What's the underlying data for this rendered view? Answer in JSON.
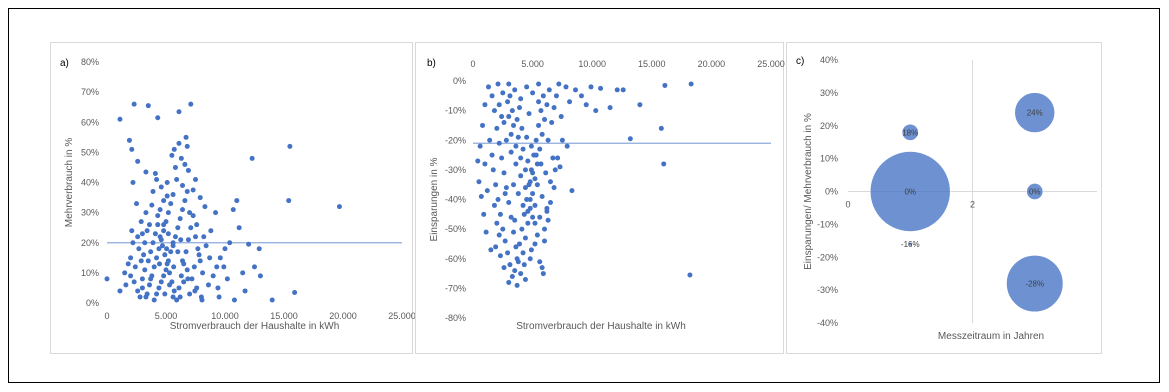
{
  "chart_data": [
    {
      "id": "a",
      "type": "scatter",
      "panel_label": "a)",
      "xlabel": "Stromverbrauch der Haushalte in kWh",
      "ylabel": "Mehrverbrauch in %",
      "xlim": [
        0,
        25000
      ],
      "ylim": [
        0,
        80
      ],
      "x_ticks": [
        "0",
        "5.000",
        "10.000",
        "15.000",
        "20.000",
        "25.000"
      ],
      "y_ticks": [
        "0%",
        "10%",
        "20%",
        "30%",
        "40%",
        "50%",
        "60%",
        "70%",
        "80%"
      ],
      "reference_line_y": 20,
      "marker_color": "#4472c4",
      "line_color": "#8eaadb",
      "points": [
        [
          1100,
          61
        ],
        [
          2300,
          66
        ],
        [
          3500,
          65.5
        ],
        [
          4300,
          61.5
        ],
        [
          6100,
          63.5
        ],
        [
          7100,
          66
        ],
        [
          1900,
          54
        ],
        [
          2100,
          51
        ],
        [
          2600,
          47
        ],
        [
          2200,
          40
        ],
        [
          3300,
          43.5
        ],
        [
          4200,
          41
        ],
        [
          4600,
          38.5
        ],
        [
          5100,
          35.5
        ],
        [
          5500,
          49
        ],
        [
          5700,
          51
        ],
        [
          6100,
          53
        ],
        [
          6700,
          55
        ],
        [
          6800,
          52
        ],
        [
          6600,
          46
        ],
        [
          5900,
          41
        ],
        [
          7300,
          37.5
        ],
        [
          7900,
          35
        ],
        [
          8300,
          32
        ],
        [
          11000,
          34
        ],
        [
          12300,
          48
        ],
        [
          15500,
          52
        ],
        [
          15400,
          34
        ],
        [
          19700,
          32
        ],
        [
          10700,
          31
        ],
        [
          11200,
          25
        ],
        [
          12000,
          19.5
        ],
        [
          12900,
          18
        ],
        [
          11500,
          10
        ],
        [
          12500,
          12
        ],
        [
          13000,
          9
        ],
        [
          14000,
          1
        ],
        [
          15900,
          3.5
        ],
        [
          0,
          8
        ],
        [
          1100,
          4
        ],
        [
          1600,
          6
        ],
        [
          2000,
          9
        ],
        [
          2400,
          12
        ],
        [
          2000,
          15
        ],
        [
          2700,
          18
        ],
        [
          2100,
          24
        ],
        [
          2900,
          27
        ],
        [
          3300,
          30
        ],
        [
          2500,
          33
        ],
        [
          3800,
          32.5
        ],
        [
          4300,
          29
        ],
        [
          4800,
          26
        ],
        [
          5200,
          23
        ],
        [
          5600,
          20
        ],
        [
          6000,
          17
        ],
        [
          6400,
          14
        ],
        [
          6800,
          11
        ],
        [
          7200,
          8
        ],
        [
          7600,
          5
        ],
        [
          8000,
          2
        ],
        [
          8600,
          6
        ],
        [
          9000,
          9
        ],
        [
          9300,
          12
        ],
        [
          9600,
          15
        ],
        [
          10000,
          18
        ],
        [
          10400,
          20
        ],
        [
          9900,
          12
        ],
        [
          10200,
          8
        ],
        [
          9500,
          2
        ],
        [
          3000,
          8
        ],
        [
          3200,
          11
        ],
        [
          3500,
          14
        ],
        [
          3700,
          17
        ],
        [
          3900,
          20
        ],
        [
          4100,
          23
        ],
        [
          4300,
          26
        ],
        [
          4500,
          22
        ],
        [
          4700,
          19
        ],
        [
          4900,
          16
        ],
        [
          5100,
          13
        ],
        [
          5300,
          10
        ],
        [
          5500,
          7
        ],
        [
          5700,
          4
        ],
        [
          5900,
          1
        ],
        [
          6100,
          5
        ],
        [
          6300,
          9
        ],
        [
          6500,
          13
        ],
        [
          6700,
          17
        ],
        [
          6900,
          21
        ],
        [
          7100,
          25
        ],
        [
          7300,
          29
        ],
        [
          7500,
          22
        ],
        [
          7700,
          18
        ],
        [
          7900,
          14
        ],
        [
          8100,
          10
        ],
        [
          3400,
          3
        ],
        [
          3600,
          6
        ],
        [
          3800,
          9
        ],
        [
          4000,
          12
        ],
        [
          4200,
          15
        ],
        [
          4400,
          18
        ],
        [
          4600,
          21
        ],
        [
          4800,
          24
        ],
        [
          5000,
          27
        ],
        [
          5200,
          30
        ],
        [
          5400,
          33
        ],
        [
          4000,
          1
        ],
        [
          4200,
          3
        ],
        [
          4400,
          5
        ],
        [
          4600,
          7
        ],
        [
          4800,
          9
        ],
        [
          5000,
          11
        ],
        [
          5200,
          14
        ],
        [
          5400,
          17
        ],
        [
          5600,
          19
        ],
        [
          5800,
          22
        ],
        [
          6000,
          25
        ],
        [
          6200,
          28
        ],
        [
          6400,
          31
        ],
        [
          6600,
          34
        ],
        [
          6800,
          37
        ],
        [
          2800,
          2
        ],
        [
          3000,
          5
        ],
        [
          3200,
          20
        ],
        [
          3400,
          24
        ],
        [
          2600,
          22
        ],
        [
          2900,
          14
        ],
        [
          3100,
          16
        ],
        [
          3300,
          2
        ],
        [
          4900,
          3
        ],
        [
          5300,
          6
        ],
        [
          5600,
          2
        ],
        [
          6200,
          2
        ],
        [
          6500,
          7
        ],
        [
          7000,
          3
        ],
        [
          7400,
          12
        ],
        [
          7800,
          16
        ],
        [
          8400,
          19
        ],
        [
          8800,
          24
        ],
        [
          9200,
          30
        ],
        [
          6900,
          44
        ],
        [
          7500,
          41
        ],
        [
          6300,
          48
        ],
        [
          5600,
          36
        ],
        [
          4800,
          34
        ],
        [
          4500,
          31
        ],
        [
          3600,
          26
        ],
        [
          3000,
          23
        ],
        [
          2200,
          20
        ],
        [
          1800,
          13
        ],
        [
          1500,
          10
        ],
        [
          2300,
          7
        ],
        [
          2600,
          4
        ],
        [
          3900,
          37
        ],
        [
          5100,
          40
        ],
        [
          5800,
          45
        ],
        [
          6400,
          39
        ],
        [
          7000,
          30
        ],
        [
          7600,
          26
        ],
        [
          8200,
          22
        ],
        [
          8700,
          15
        ],
        [
          9400,
          5
        ],
        [
          10800,
          1
        ],
        [
          11700,
          4
        ],
        [
          4100,
          43
        ],
        [
          3700,
          8
        ],
        [
          4450,
          13
        ],
        [
          5050,
          18
        ],
        [
          5650,
          12
        ],
        [
          6250,
          21
        ],
        [
          6850,
          8
        ],
        [
          7450,
          4
        ],
        [
          8050,
          1
        ]
      ]
    },
    {
      "id": "b",
      "type": "scatter",
      "panel_label": "b)",
      "xlabel": "Stromverbrauch der Haushalte in kWh",
      "ylabel": "Einsparungen in %",
      "xlim": [
        0,
        25000
      ],
      "ylim": [
        -80,
        0
      ],
      "x_ticks": [
        "0",
        "5.000",
        "10.000",
        "15.000",
        "20.000",
        "25.000"
      ],
      "y_ticks": [
        "0%",
        "-10%",
        "-20%",
        "-30%",
        "-40%",
        "-50%",
        "-60%",
        "-70%",
        "-80%"
      ],
      "reference_line_y": -21,
      "marker_color": "#4472c4",
      "line_color": "#8eaadb",
      "points": [
        [
          18300,
          -1
        ],
        [
          16100,
          -1.5
        ],
        [
          15800,
          -16
        ],
        [
          16000,
          -28
        ],
        [
          18200,
          -65.5
        ],
        [
          14000,
          -8
        ],
        [
          13200,
          -19.5
        ],
        [
          12600,
          -3
        ],
        [
          12100,
          -3
        ],
        [
          11500,
          -9
        ],
        [
          10700,
          -2.5
        ],
        [
          10300,
          -10
        ],
        [
          9900,
          -2
        ],
        [
          9500,
          -8
        ],
        [
          9100,
          -5
        ],
        [
          8600,
          -3
        ],
        [
          8100,
          -7
        ],
        [
          7800,
          -2
        ],
        [
          7400,
          -12
        ],
        [
          7200,
          -1
        ],
        [
          7000,
          -5
        ],
        [
          6800,
          -9
        ],
        [
          6600,
          -14
        ],
        [
          7500,
          -20
        ],
        [
          7900,
          -22
        ],
        [
          8300,
          -37
        ],
        [
          7100,
          -26
        ],
        [
          6900,
          -30
        ],
        [
          6800,
          -36
        ],
        [
          6500,
          -41
        ],
        [
          6200,
          -44
        ],
        [
          6300,
          -47
        ],
        [
          6000,
          -54
        ],
        [
          5600,
          -61
        ],
        [
          5800,
          -63
        ],
        [
          5900,
          -65
        ],
        [
          5200,
          -55
        ],
        [
          4800,
          -60
        ],
        [
          4400,
          -67
        ],
        [
          3700,
          -69
        ],
        [
          3000,
          -68
        ],
        [
          2600,
          -63
        ],
        [
          2300,
          -59
        ],
        [
          1900,
          -56
        ],
        [
          1500,
          -57
        ],
        [
          1100,
          -51
        ],
        [
          900,
          -45
        ],
        [
          700,
          -39
        ],
        [
          500,
          -34
        ],
        [
          400,
          -27
        ],
        [
          600,
          -22
        ],
        [
          800,
          -15
        ],
        [
          1000,
          -8
        ],
        [
          1300,
          -2
        ],
        [
          1600,
          -5
        ],
        [
          1800,
          -10
        ],
        [
          2000,
          -16
        ],
        [
          2200,
          -21
        ],
        [
          2400,
          -26
        ],
        [
          2600,
          -31
        ],
        [
          2800,
          -36
        ],
        [
          3000,
          -41
        ],
        [
          3200,
          -46
        ],
        [
          3400,
          -51
        ],
        [
          3600,
          -56
        ],
        [
          3800,
          -61
        ],
        [
          4000,
          -65
        ],
        [
          4200,
          -58
        ],
        [
          4400,
          -53
        ],
        [
          4600,
          -48
        ],
        [
          4800,
          -43
        ],
        [
          5000,
          -38
        ],
        [
          5200,
          -33
        ],
        [
          5400,
          -28
        ],
        [
          5600,
          -23
        ],
        [
          5800,
          -18
        ],
        [
          6000,
          -13
        ],
        [
          6200,
          -8
        ],
        [
          6400,
          -3
        ],
        [
          2100,
          -1
        ],
        [
          2500,
          -4
        ],
        [
          2900,
          -7
        ],
        [
          3300,
          -10
        ],
        [
          3700,
          -13
        ],
        [
          4100,
          -16
        ],
        [
          4500,
          -19
        ],
        [
          4900,
          -22
        ],
        [
          5300,
          -25
        ],
        [
          5700,
          -28
        ],
        [
          6100,
          -31
        ],
        [
          6500,
          -34
        ],
        [
          1700,
          -30
        ],
        [
          1900,
          -35
        ],
        [
          2100,
          -40
        ],
        [
          2300,
          -45
        ],
        [
          2500,
          -50
        ],
        [
          2700,
          -54
        ],
        [
          2900,
          -58
        ],
        [
          3100,
          -62
        ],
        [
          3300,
          -66
        ],
        [
          3500,
          -64
        ],
        [
          3700,
          -60
        ],
        [
          3900,
          -55
        ],
        [
          4100,
          -50
        ],
        [
          4300,
          -45
        ],
        [
          4500,
          -40
        ],
        [
          4700,
          -35
        ],
        [
          4900,
          -30
        ],
        [
          5100,
          -25
        ],
        [
          5300,
          -20
        ],
        [
          5500,
          -15
        ],
        [
          5700,
          -10
        ],
        [
          5900,
          -5
        ],
        [
          3000,
          -1
        ],
        [
          3500,
          -3
        ],
        [
          4000,
          -6
        ],
        [
          4500,
          -2
        ],
        [
          5000,
          -4
        ],
        [
          5500,
          -1
        ],
        [
          3200,
          -18
        ],
        [
          3600,
          -22
        ],
        [
          4000,
          -26
        ],
        [
          4400,
          -30
        ],
        [
          4800,
          -34
        ],
        [
          5200,
          -42
        ],
        [
          5600,
          -46
        ],
        [
          6000,
          -50
        ],
        [
          2400,
          -12
        ],
        [
          2800,
          -20
        ],
        [
          3200,
          -24
        ],
        [
          3600,
          -28
        ],
        [
          4000,
          -32
        ],
        [
          4400,
          -36
        ],
        [
          4800,
          -40
        ],
        [
          5200,
          -48
        ],
        [
          2200,
          -8
        ],
        [
          2600,
          -14
        ],
        [
          3000,
          -12
        ],
        [
          3400,
          -15
        ],
        [
          3800,
          -19
        ],
        [
          4200,
          -23
        ],
        [
          4600,
          -27
        ],
        [
          5000,
          -31
        ],
        [
          5400,
          -35
        ],
        [
          5800,
          -39
        ],
        [
          6200,
          -43
        ],
        [
          1400,
          -20
        ],
        [
          1600,
          -25
        ],
        [
          1800,
          -42
        ],
        [
          2000,
          -48
        ],
        [
          2200,
          -52
        ],
        [
          3100,
          -5
        ],
        [
          3900,
          -9
        ],
        [
          4700,
          -11
        ],
        [
          5500,
          -7
        ],
        [
          6300,
          -20
        ],
        [
          6700,
          -26
        ],
        [
          7300,
          -29
        ],
        [
          3400,
          -35
        ],
        [
          3800,
          -38
        ],
        [
          4200,
          -42
        ],
        [
          4600,
          -44
        ],
        [
          5000,
          -46
        ],
        [
          5400,
          -52
        ],
        [
          1200,
          -37
        ],
        [
          1000,
          -28
        ],
        [
          2700,
          -38
        ],
        [
          3500,
          -47
        ],
        [
          4300,
          -62
        ],
        [
          4900,
          -57
        ]
      ]
    },
    {
      "id": "c",
      "type": "bubble",
      "panel_label": "c)",
      "xlabel": "Messzeitraum in Jahren",
      "ylabel": "Einsparungen/ Mehrverbrauch in %",
      "xlim": [
        0,
        4
      ],
      "ylim": [
        -40,
        40
      ],
      "x_ticks": [
        "0",
        "2"
      ],
      "y_ticks": [
        "40%",
        "30%",
        "20%",
        "10%",
        "0%",
        "-10%",
        "-20%",
        "-30%",
        "-40%"
      ],
      "marker_color": "#4472c4",
      "bubbles": [
        {
          "x": 1,
          "y": 18,
          "size": 1,
          "label": "18%"
        },
        {
          "x": 1,
          "y": 0,
          "size": 24,
          "label": "0%"
        },
        {
          "x": 1,
          "y": -16,
          "size": 0.05,
          "label": "-16%"
        },
        {
          "x": 3,
          "y": 24,
          "size": 6,
          "label": "24%"
        },
        {
          "x": 3,
          "y": 0,
          "size": 1,
          "label": "0%"
        },
        {
          "x": 3,
          "y": -28,
          "size": 12,
          "label": "-28%"
        }
      ]
    }
  ]
}
